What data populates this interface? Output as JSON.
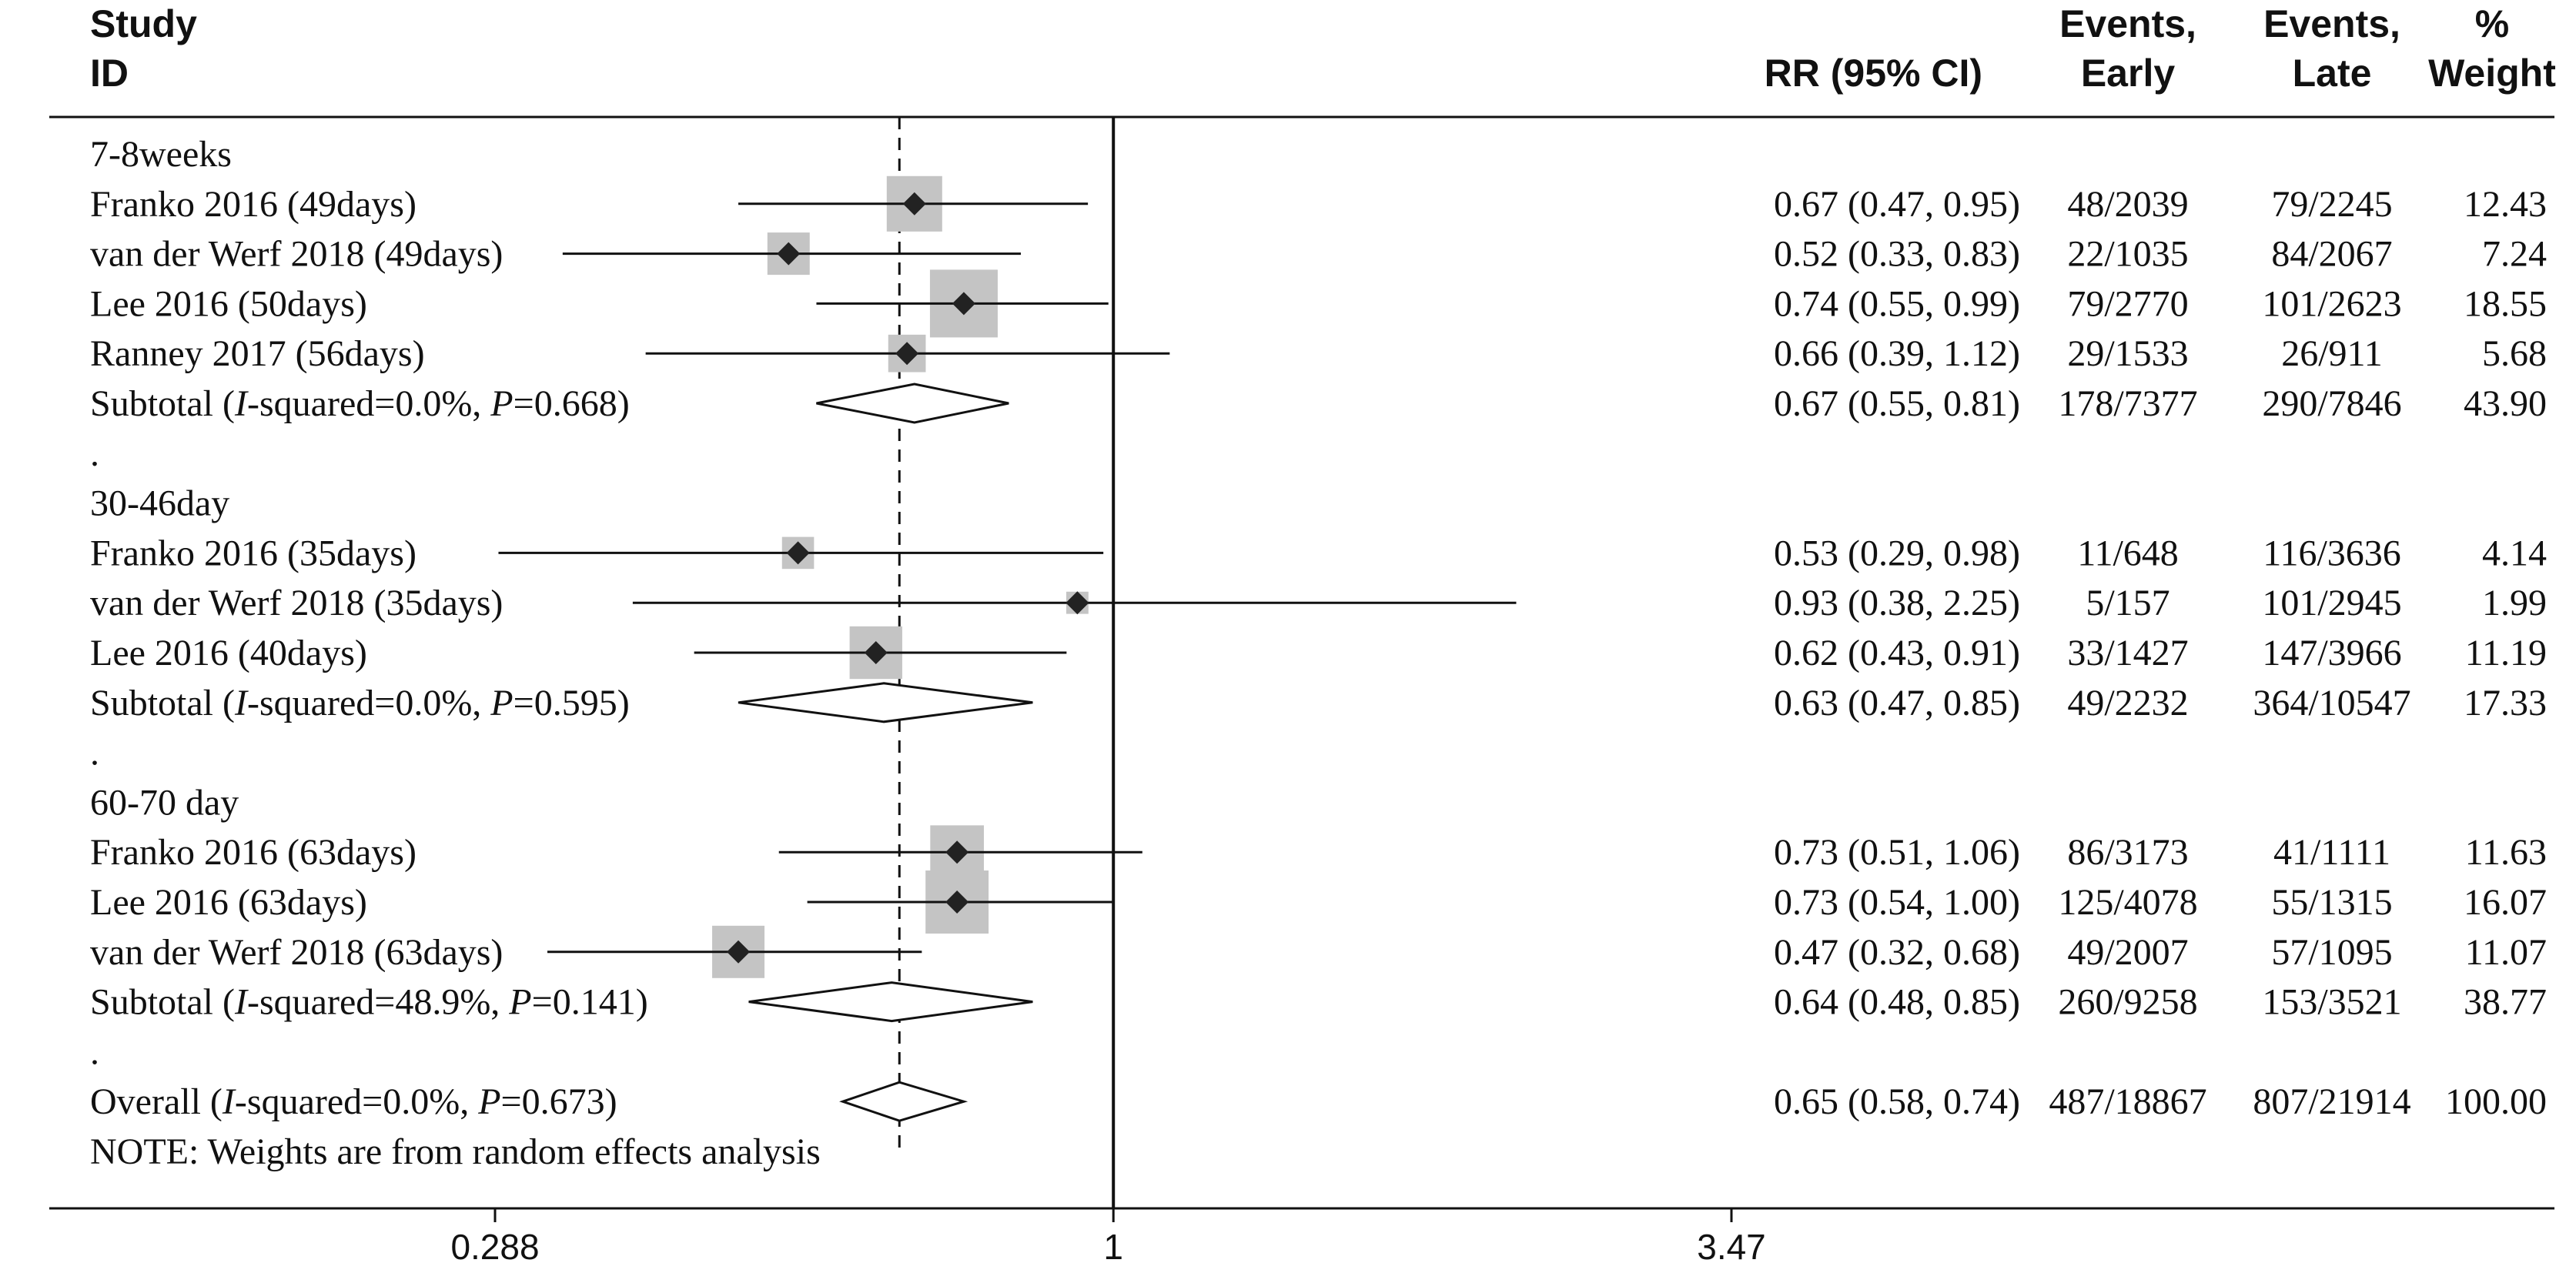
{
  "chart_data": {
    "type": "forest",
    "headers": {
      "study_1": "Study",
      "study_2": "ID",
      "rr": "RR (95% CI)",
      "early_1": "Events,",
      "early_2": "Early",
      "late_1": "Events,",
      "late_2": "Late",
      "weight_1": "%",
      "weight_2": "Weight"
    },
    "x_scale": "log",
    "xlim": [
      0.288,
      3.47
    ],
    "x_ticks": [
      "0.288",
      "1",
      "3.47"
    ],
    "null_line": 1,
    "overall_line": 0.65,
    "rows": [
      {
        "kind": "group",
        "label": "7-8weeks"
      },
      {
        "kind": "study",
        "label": "Franko 2016 (49days)",
        "rr": 0.67,
        "lo": 0.47,
        "hi": 0.95,
        "rr_text": "0.67 (0.47, 0.95)",
        "early": "48/2039",
        "late": "79/2245",
        "weight": 12.43,
        "weight_text": "12.43"
      },
      {
        "kind": "study",
        "label": "van der Werf 2018 (49days)",
        "rr": 0.52,
        "lo": 0.33,
        "hi": 0.83,
        "rr_text": "0.52 (0.33, 0.83)",
        "early": "22/1035",
        "late": "84/2067",
        "weight": 7.24,
        "weight_text": "7.24"
      },
      {
        "kind": "study",
        "label": "Lee 2016 (50days)",
        "rr": 0.74,
        "lo": 0.55,
        "hi": 0.99,
        "rr_text": "0.74 (0.55, 0.99)",
        "early": "79/2770",
        "late": "101/2623",
        "weight": 18.55,
        "weight_text": "18.55"
      },
      {
        "kind": "study",
        "label": "Ranney 2017 (56days)",
        "rr": 0.66,
        "lo": 0.39,
        "hi": 1.12,
        "rr_text": "0.66 (0.39, 1.12)",
        "early": "29/1533",
        "late": "26/911",
        "weight": 5.68,
        "weight_text": "5.68"
      },
      {
        "kind": "subtotal",
        "prefix": "Subtotal  (",
        "i2": "I",
        "mid": "-squared=0.0%, ",
        "p": "P",
        "suffix": "=0.668)",
        "rr": 0.67,
        "lo": 0.55,
        "hi": 0.81,
        "rr_text": "0.67 (0.55, 0.81)",
        "early": "178/7377",
        "late": "290/7846",
        "weight_text": "43.90"
      },
      {
        "kind": "dot",
        "label": "."
      },
      {
        "kind": "group",
        "label": "30-46day"
      },
      {
        "kind": "study",
        "label": "Franko 2016 (35days)",
        "rr": 0.53,
        "lo": 0.29,
        "hi": 0.98,
        "rr_text": "0.53 (0.29, 0.98)",
        "early": "11/648",
        "late": "116/3636",
        "weight": 4.14,
        "weight_text": "4.14"
      },
      {
        "kind": "study",
        "label": "van der Werf 2018 (35days)",
        "rr": 0.93,
        "lo": 0.38,
        "hi": 2.25,
        "rr_text": "0.93 (0.38, 2.25)",
        "early": "5/157",
        "late": "101/2945",
        "weight": 1.99,
        "weight_text": "1.99"
      },
      {
        "kind": "study",
        "label": "Lee 2016 (40days)",
        "rr": 0.62,
        "lo": 0.43,
        "hi": 0.91,
        "rr_text": "0.62 (0.43, 0.91)",
        "early": "33/1427",
        "late": "147/3966",
        "weight": 11.19,
        "weight_text": "11.19"
      },
      {
        "kind": "subtotal",
        "prefix": "Subtotal  (",
        "i2": "I",
        "mid": "-squared=0.0%, ",
        "p": "P",
        "suffix": "=0.595)",
        "rr": 0.63,
        "lo": 0.47,
        "hi": 0.85,
        "rr_text": "0.63 (0.47, 0.85)",
        "early": "49/2232",
        "late": "364/10547",
        "weight_text": "17.33"
      },
      {
        "kind": "dot",
        "label": "."
      },
      {
        "kind": "group",
        "label": "60-70 day"
      },
      {
        "kind": "study",
        "label": "Franko 2016 (63days)",
        "rr": 0.73,
        "lo": 0.51,
        "hi": 1.06,
        "rr_text": "0.73 (0.51, 1.06)",
        "early": "86/3173",
        "late": "41/1111",
        "weight": 11.63,
        "weight_text": "11.63"
      },
      {
        "kind": "study",
        "label": "Lee 2016 (63days)",
        "rr": 0.73,
        "lo": 0.54,
        "hi": 1.0,
        "rr_text": "0.73 (0.54, 1.00)",
        "early": "125/4078",
        "late": "55/1315",
        "weight": 16.07,
        "weight_text": "16.07"
      },
      {
        "kind": "study",
        "label": "van der Werf 2018 (63days)",
        "rr": 0.47,
        "lo": 0.32,
        "hi": 0.68,
        "rr_text": "0.47 (0.32, 0.68)",
        "early": "49/2007",
        "late": "57/1095",
        "weight": 11.07,
        "weight_text": "11.07"
      },
      {
        "kind": "subtotal",
        "prefix": "Subtotal  (",
        "i2": "I",
        "mid": "-squared=48.9%, ",
        "p": "P",
        "suffix": "=0.141)",
        "rr": 0.64,
        "lo": 0.48,
        "hi": 0.85,
        "rr_text": "0.64 (0.48, 0.85)",
        "early": "260/9258",
        "late": "153/3521",
        "weight_text": "38.77"
      },
      {
        "kind": "dot",
        "label": "."
      },
      {
        "kind": "overall",
        "prefix": "Overall  (",
        "i2": "I",
        "mid": "-squared=0.0%, ",
        "p": "P",
        "suffix": "=0.673)",
        "rr": 0.65,
        "lo": 0.58,
        "hi": 0.74,
        "rr_text": "0.65 (0.58, 0.74)",
        "early": "487/18867",
        "late": "807/21914",
        "weight_text": "100.00"
      },
      {
        "kind": "note",
        "label": "NOTE: Weights are from random effects analysis"
      }
    ],
    "colors": {
      "box": "#c4c4c4",
      "marker": "#222222",
      "line": "#111111"
    }
  }
}
